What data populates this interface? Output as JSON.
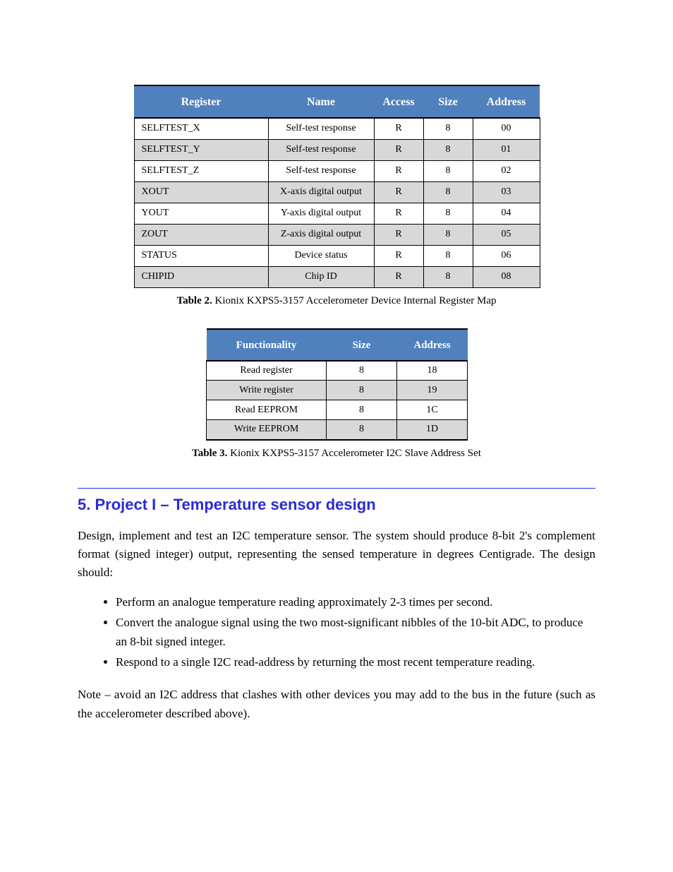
{
  "table1": {
    "header_bg": "#5181bd",
    "stripe_bg": "#d8d8d8",
    "headers": [
      "Register",
      "Name",
      "Access",
      "Size",
      "Address"
    ],
    "rows": [
      [
        "SELFTEST_X",
        "Self-test response",
        "R",
        "8",
        "00"
      ],
      [
        "SELFTEST_Y",
        "Self-test response",
        "R",
        "8",
        "01"
      ],
      [
        "SELFTEST_Z",
        "Self-test response",
        "R",
        "8",
        "02"
      ],
      [
        "XOUT",
        "X-axis digital output",
        "R",
        "8",
        "03"
      ],
      [
        "YOUT",
        "Y-axis digital output",
        "R",
        "8",
        "04"
      ],
      [
        "ZOUT",
        "Z-axis digital output",
        "R",
        "8",
        "05"
      ],
      [
        "STATUS",
        "Device status",
        "R",
        "8",
        "06"
      ],
      [
        "CHIPID",
        "Chip ID",
        "R",
        "8",
        "08"
      ]
    ],
    "caption_label": "Table 2.",
    "caption_text": " Kionix KXPS5-3157 Accelerometer Device Internal Register Map"
  },
  "table2": {
    "header_bg": "#5181bd",
    "stripe_bg": "#d8d8d8",
    "headers": [
      "Functionality",
      "Size",
      "Address"
    ],
    "rows": [
      [
        "Read register",
        "8",
        "18"
      ],
      [
        "Write register",
        "8",
        "19"
      ],
      [
        "Read EEPROM",
        "8",
        "1C"
      ],
      [
        "Write EEPROM",
        "8",
        "1D"
      ]
    ],
    "caption_label": "Table 3.",
    "caption_text": " Kionix KXPS5-3157 Accelerometer I2C Slave Address Set"
  },
  "section": {
    "title": "5. Project I – Temperature sensor design",
    "para": "Design, implement and test an I2C temperature sensor. The system should produce 8-bit 2's complement format (signed integer) output, representing the sensed temperature in degrees Centigrade. The design should:",
    "bullets": [
      "Perform an analogue temperature reading approximately 2-3 times per second.",
      "Convert the analogue signal using the two most-significant nibbles of the 10-bit ADC, to produce an 8-bit signed integer.",
      "Respond to a single I2C read-address by returning the most recent temperature reading."
    ],
    "note": "Note – avoid an I2C address that clashes with other devices you may add to the bus in the future (such as the accelerometer described above)."
  }
}
